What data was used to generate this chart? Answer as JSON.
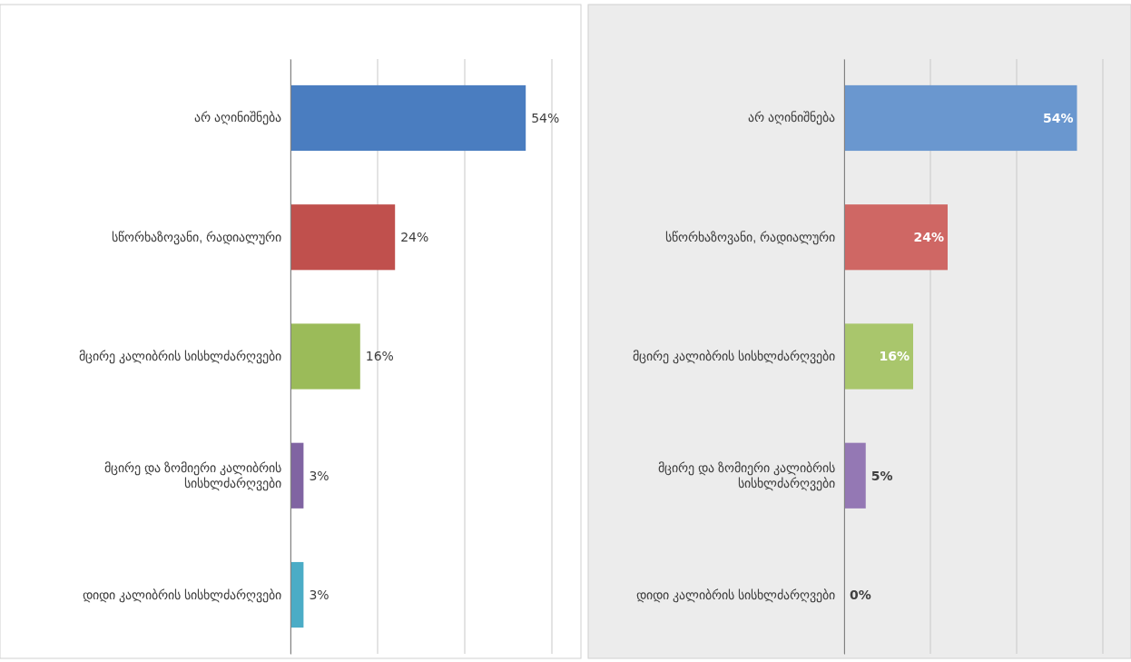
{
  "chart_data": [
    {
      "type": "bar",
      "orientation": "horizontal",
      "categories": [
        "არ აღინიშნება",
        "სწორხაზოვანი, რადიალური",
        "მცირე  კალიბრის სისხლძარღვები",
        "მცირე და ზომიერი კალიბრის სისხლძარღვები",
        "დიდი კალიბრის სისხლძარღვები"
      ],
      "values": [
        54,
        24,
        16,
        3,
        3
      ],
      "value_labels": [
        "54%",
        "24%",
        "16%",
        "3%",
        "3%"
      ],
      "colors": [
        "#4a7dc0",
        "#c0504d",
        "#9bbb59",
        "#8064a2",
        "#4bacc6"
      ],
      "xlim": [
        0,
        60
      ],
      "xticks": [
        {
          "value": 0,
          "label": null
        },
        {
          "value": 20,
          "label": null
        },
        {
          "value": 40,
          "label": null
        },
        {
          "value": 60,
          "label": null
        }
      ],
      "grid": "x",
      "tick_labels": "y"
    },
    {
      "type": "bar",
      "orientation": "horizontal",
      "categories": [
        "არ აღინიშნება",
        "სწორხაზოვანი, რადიალური",
        "მცირე  კალიბრის სისხლძარღვები",
        "მცირე და ზომიერი კალიბრის სისხლძარღვები",
        "დიდი კალიბრის სისხლძარღვები"
      ],
      "values": [
        54,
        24,
        16,
        5,
        0
      ],
      "value_labels": [
        "54%",
        "24%",
        "16%",
        "5%",
        "0%"
      ],
      "colors": [
        "#6a97cf",
        "#cf6764",
        "#a9c66c",
        "#9478b4",
        "#6cbcd3"
      ],
      "xlim": [
        0,
        60
      ],
      "xticks": [
        {
          "value": 0,
          "label": null
        },
        {
          "value": 20,
          "label": null
        },
        {
          "value": 40,
          "label": null
        },
        {
          "value": 60,
          "label": null
        }
      ],
      "grid": "x",
      "tick_labels": "y"
    }
  ]
}
